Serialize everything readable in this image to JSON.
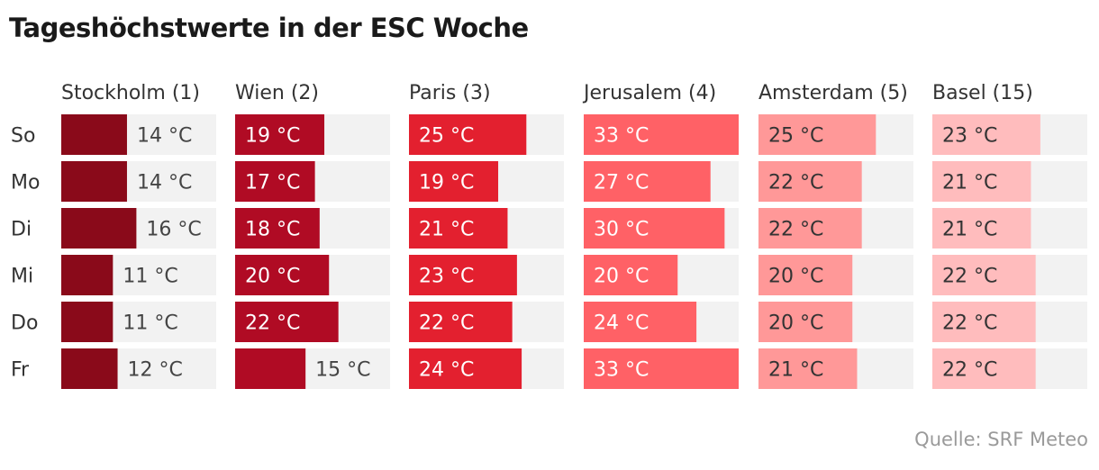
{
  "title": "Tageshöchstwerte in der ESC Woche",
  "source": "Quelle: SRF Meteo",
  "chart_data": {
    "type": "bar",
    "unit": "°C",
    "max_value": 33,
    "days": [
      "So",
      "Mo",
      "Di",
      "Mi",
      "Do",
      "Fr"
    ],
    "series": [
      {
        "name": "Stockholm (1)",
        "color": "#8a0a1a",
        "values": [
          14,
          14,
          16,
          11,
          11,
          12
        ],
        "labels": [
          "14 °C",
          "14 °C",
          "16 °C",
          "11 °C",
          "11 °C",
          "12 °C"
        ]
      },
      {
        "name": "Wien (2)",
        "color": "#b00b24",
        "values": [
          19,
          17,
          18,
          20,
          22,
          15
        ],
        "labels": [
          "19 °C",
          "17 °C",
          "18 °C",
          "20 °C",
          "22 °C",
          "15 °C"
        ]
      },
      {
        "name": "Paris (3)",
        "color": "#e3202f",
        "values": [
          25,
          19,
          21,
          23,
          22,
          24
        ],
        "labels": [
          "25 °C",
          "19 °C",
          "21 °C",
          "23 °C",
          "22 °C",
          "24 °C"
        ]
      },
      {
        "name": "Jerusalem (4)",
        "color": "#ff6166",
        "values": [
          33,
          27,
          30,
          20,
          24,
          33
        ],
        "labels": [
          "33 °C",
          "27 °C",
          "30 °C",
          "20 °C",
          "24 °C",
          "33 °C"
        ]
      },
      {
        "name": "Amsterdam (5)",
        "color": "#ff9898",
        "values": [
          25,
          22,
          22,
          20,
          20,
          21
        ],
        "labels": [
          "25 °C",
          "22 °C",
          "22 °C",
          "20 °C",
          "20 °C",
          "21 °C"
        ]
      },
      {
        "name": "Basel (15)",
        "color": "#ffbcbd",
        "values": [
          23,
          21,
          21,
          22,
          22,
          22
        ],
        "labels": [
          "23 °C",
          "21 °C",
          "21 °C",
          "22 °C",
          "22 °C",
          "22 °C"
        ]
      }
    ]
  }
}
